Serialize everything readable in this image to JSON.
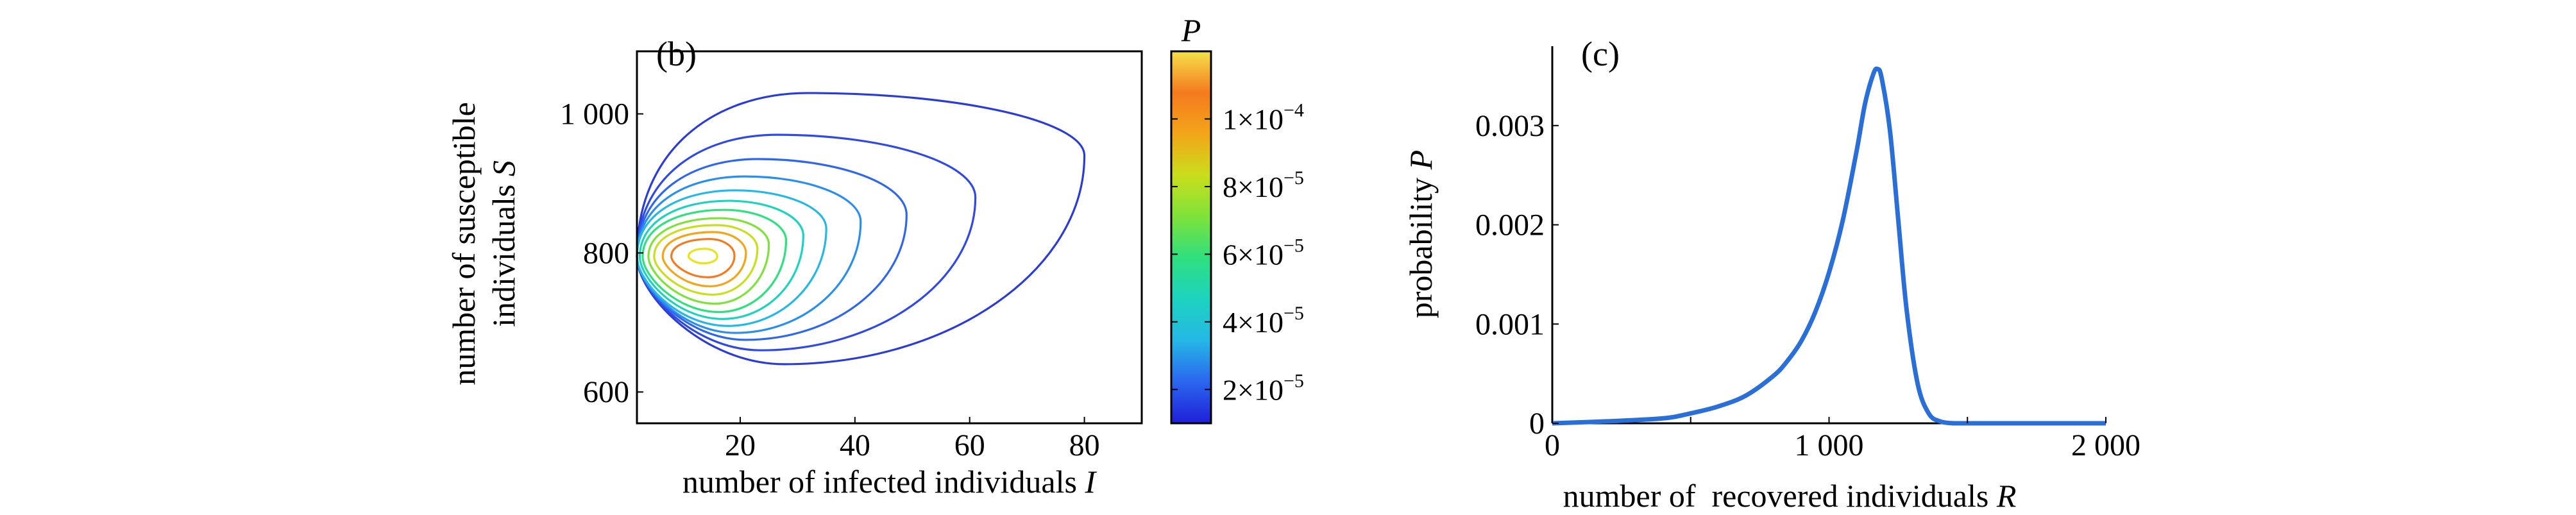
{
  "chart_data": [
    {
      "type": "contour",
      "panel_label": "(b)",
      "xlabel": "number of infected individuals",
      "xlabel_var": "I",
      "ylabel_line1": "number of susceptible",
      "ylabel_line2": "individuals",
      "ylabel_var": "S",
      "xlim": [
        2,
        90
      ],
      "ylim": [
        555,
        1090
      ],
      "xticks": [
        20,
        40,
        60,
        80
      ],
      "xtick_labels": [
        "20",
        "40",
        "60",
        "80"
      ],
      "yticks": [
        600,
        800,
        1000
      ],
      "ytick_labels": [
        "600",
        "800",
        "1 000"
      ],
      "peak": {
        "I": 13,
        "S": 795
      },
      "contours": [
        {
          "level": 1e-05,
          "i_min": 2,
          "i_max": 80,
          "s_top": 1030,
          "s_bottom": 640,
          "s_at_max": 940,
          "color": "#2a3bd8"
        },
        {
          "level": 2e-05,
          "i_min": 2,
          "i_max": 61,
          "s_top": 970,
          "s_bottom": 660,
          "s_at_max": 880,
          "color": "#2f48e6"
        },
        {
          "level": 3e-05,
          "i_min": 2,
          "i_max": 49,
          "s_top": 935,
          "s_bottom": 675,
          "s_at_max": 855,
          "color": "#2e66ee"
        },
        {
          "level": 4e-05,
          "i_min": 2,
          "i_max": 41,
          "s_top": 910,
          "s_bottom": 685,
          "s_at_max": 845,
          "color": "#2a8ef0"
        },
        {
          "level": 5e-05,
          "i_min": 2,
          "i_max": 35,
          "s_top": 890,
          "s_bottom": 695,
          "s_at_max": 835,
          "color": "#25b7e6"
        },
        {
          "level": 6e-05,
          "i_min": 2.5,
          "i_max": 31,
          "s_top": 875,
          "s_bottom": 705,
          "s_at_max": 825,
          "color": "#1dd3bf"
        },
        {
          "level": 7e-05,
          "i_min": 3,
          "i_max": 28,
          "s_top": 862,
          "s_bottom": 715,
          "s_at_max": 818,
          "color": "#2fe07e"
        },
        {
          "level": 8e-05,
          "i_min": 4,
          "i_max": 25,
          "s_top": 850,
          "s_bottom": 727,
          "s_at_max": 812,
          "color": "#7fe23a"
        },
        {
          "level": 9e-05,
          "i_min": 5,
          "i_max": 23,
          "s_top": 840,
          "s_bottom": 740,
          "s_at_max": 806,
          "color": "#c9de1c"
        },
        {
          "level": 0.0001,
          "i_min": 6.5,
          "i_max": 21,
          "s_top": 830,
          "s_bottom": 752,
          "s_at_max": 800,
          "color": "#f3a51a"
        },
        {
          "level": 0.00011,
          "i_min": 8,
          "i_max": 19,
          "s_top": 820,
          "s_bottom": 765,
          "s_at_max": 796,
          "color": "#f47a1e"
        },
        {
          "level": 0.00012,
          "i_min": 11,
          "i_max": 16,
          "s_top": 806,
          "s_bottom": 785,
          "s_at_max": 795,
          "color": "#e9e21e"
        }
      ],
      "colorbar": {
        "title": "P",
        "range": [
          1e-05,
          0.00012
        ],
        "colors": [
          "#1f1fd8",
          "#2a66ee",
          "#25b7e6",
          "#1dd3bf",
          "#2fe07e",
          "#7fe23a",
          "#c9de1c",
          "#f3a51a",
          "#f47a1e",
          "#f5e24a"
        ],
        "ticks": [
          {
            "value": 2e-05,
            "mantissa": "2",
            "exponent": "−5"
          },
          {
            "value": 4e-05,
            "mantissa": "4",
            "exponent": "−5"
          },
          {
            "value": 6e-05,
            "mantissa": "6",
            "exponent": "−5"
          },
          {
            "value": 8e-05,
            "mantissa": "8",
            "exponent": "−5"
          },
          {
            "value": 0.0001,
            "mantissa": "1",
            "exponent": "−4"
          }
        ]
      }
    },
    {
      "type": "line",
      "panel_label": "(c)",
      "xlabel": "number of  recovered individuals",
      "xlabel_var": "R",
      "ylabel": "probability",
      "ylabel_var": "P",
      "xlim": [
        0,
        2000
      ],
      "ylim": [
        0,
        0.0038
      ],
      "xticks": [
        0,
        1000,
        2000
      ],
      "xtick_labels": [
        "0",
        "1 000",
        "2 000"
      ],
      "yticks": [
        0,
        0.001,
        0.002,
        0.003
      ],
      "ytick_labels": [
        "0",
        "0.001",
        "0.002",
        "0.003"
      ],
      "series": [
        {
          "color": "#2a6fd8",
          "x": [
            0,
            200,
            400,
            500,
            600,
            700,
            800,
            850,
            900,
            950,
            1000,
            1050,
            1100,
            1130,
            1160,
            1175,
            1190,
            1220,
            1250,
            1280,
            1320,
            1360,
            1400,
            1450,
            1500,
            2000
          ],
          "y": [
            0,
            2e-05,
            5e-05,
            0.0001,
            0.00017,
            0.00028,
            0.00048,
            0.00063,
            0.00083,
            0.00112,
            0.00152,
            0.00205,
            0.00275,
            0.00322,
            0.00352,
            0.00357,
            0.00348,
            0.00295,
            0.00205,
            0.00115,
            0.0004,
            0.0001,
            2e-05,
            0,
            0,
            0
          ]
        }
      ]
    }
  ]
}
